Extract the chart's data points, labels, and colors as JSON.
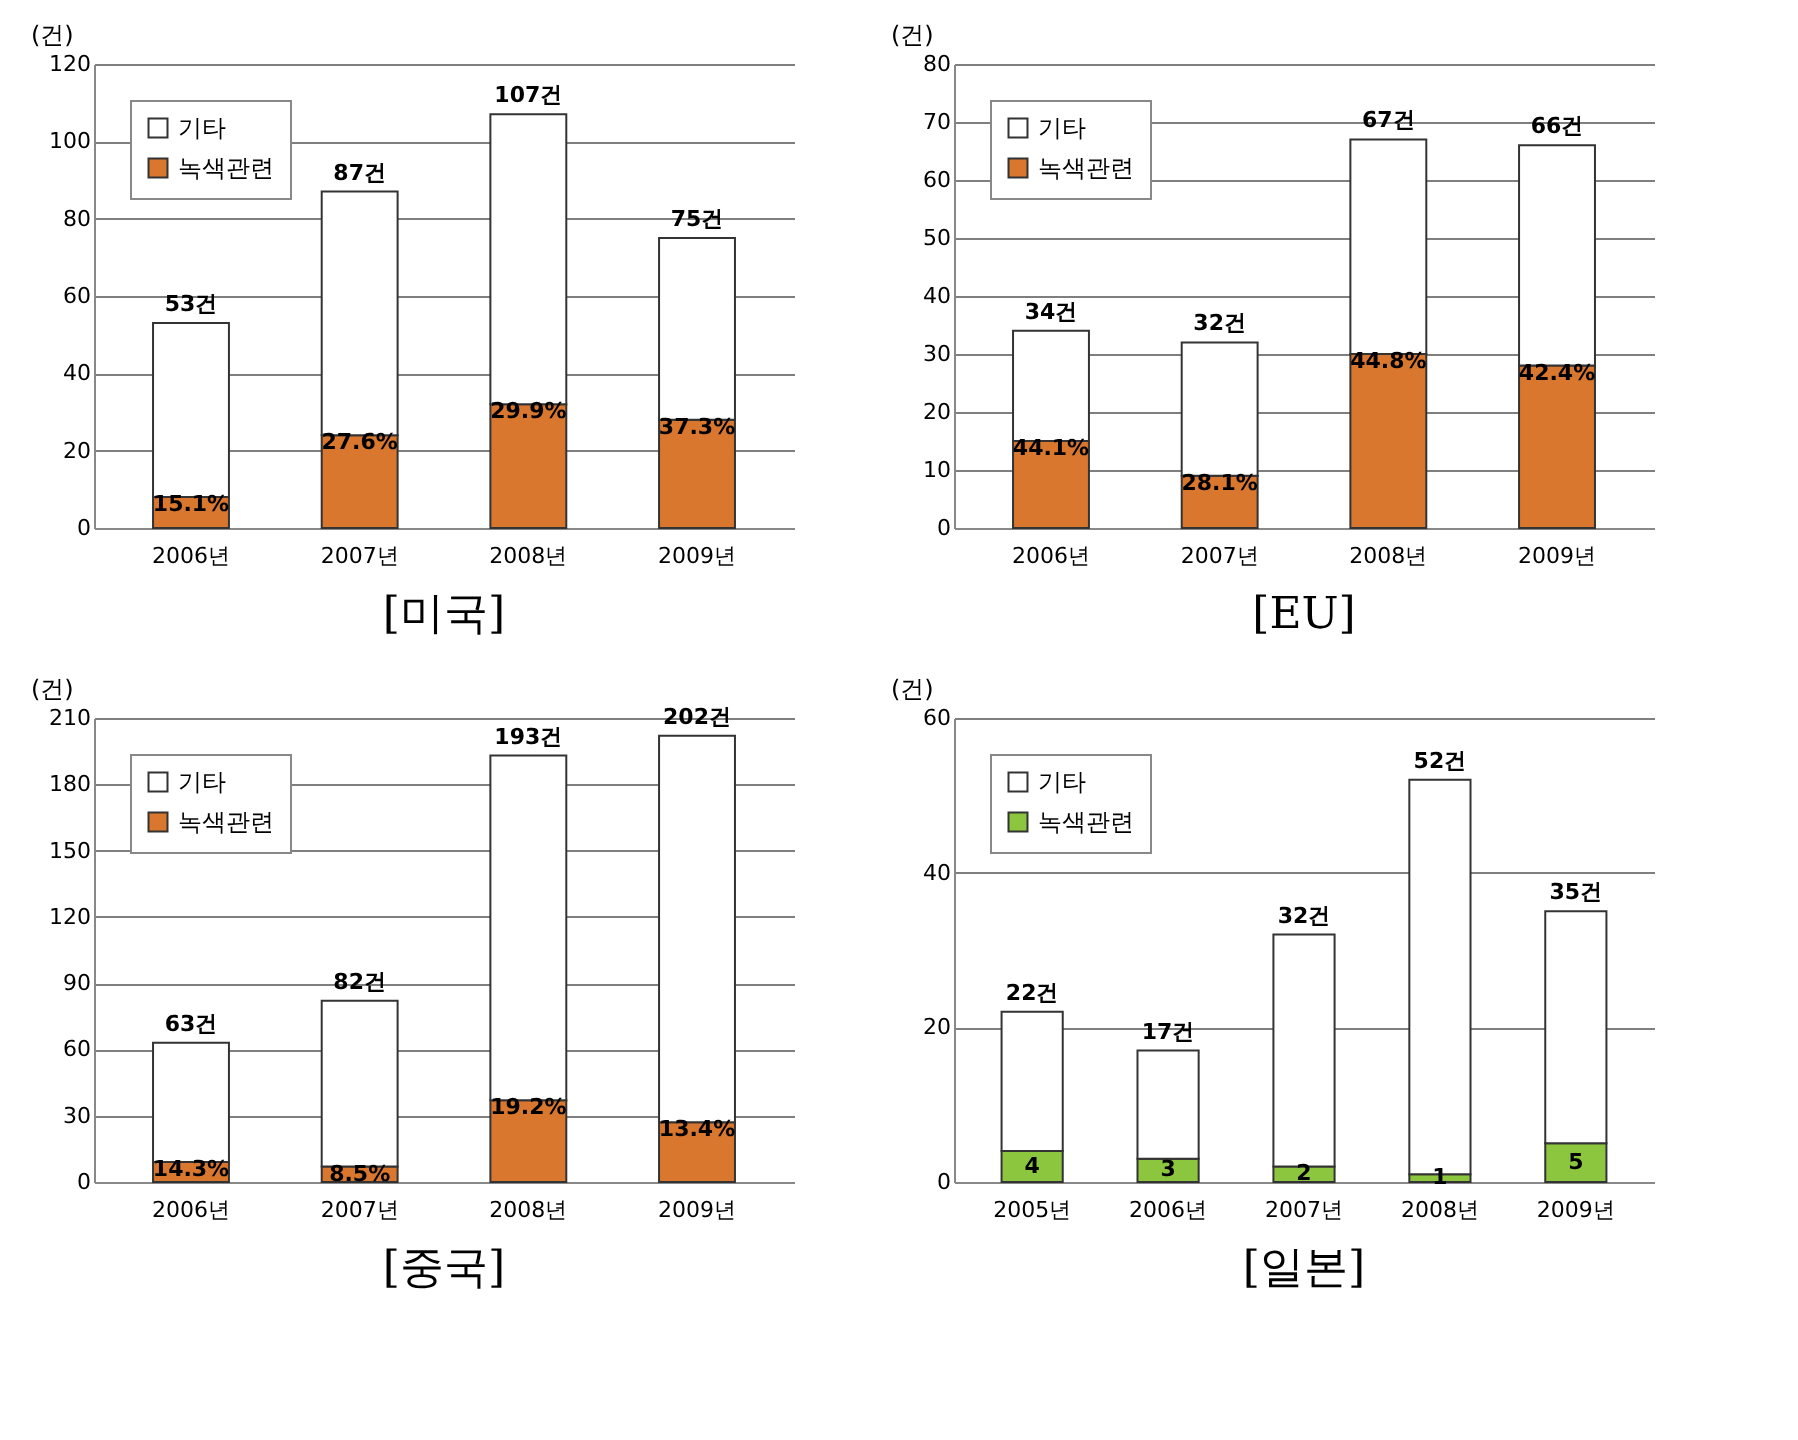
{
  "chart_data": [
    {
      "type": "bar",
      "title": "[미국]",
      "ylabel": "(건)",
      "categories": [
        "2006년",
        "2007년",
        "2008년",
        "2009년"
      ],
      "stacked": true,
      "ylim": [
        0,
        120
      ],
      "yticks": [
        0,
        20,
        40,
        60,
        80,
        100,
        120
      ],
      "grid": "y",
      "legend": "top left",
      "series": [
        {
          "name": "녹색관련",
          "color": "#d9772e",
          "values": [
            8,
            24,
            32,
            28
          ]
        },
        {
          "name": "기타",
          "color": "#ffffff",
          "values": [
            45,
            63,
            75,
            47
          ]
        }
      ],
      "annotations": [
        {
          "text": "15.1%",
          "x": "2006년",
          "y": 8
        },
        {
          "text": "27.6%",
          "x": "2007년",
          "y": 24
        },
        {
          "text": "29.9%",
          "x": "2008년",
          "y": 32
        },
        {
          "text": "37.3%",
          "x": "2009년",
          "y": 28
        }
      ],
      "totals": [
        "53건",
        "87건",
        "107건",
        "75건"
      ]
    },
    {
      "type": "bar",
      "title": "[EU]",
      "ylabel": "(건)",
      "categories": [
        "2006년",
        "2007년",
        "2008년",
        "2009년"
      ],
      "stacked": true,
      "ylim": [
        0,
        80
      ],
      "yticks": [
        0,
        10,
        20,
        30,
        40,
        50,
        60,
        70,
        80
      ],
      "grid": "y",
      "legend": "top left",
      "series": [
        {
          "name": "녹색관련",
          "color": "#d9772e",
          "values": [
            15,
            9,
            30,
            28
          ]
        },
        {
          "name": "기타",
          "color": "#ffffff",
          "values": [
            19,
            23,
            37,
            38
          ]
        }
      ],
      "annotations": [
        {
          "text": "44.1%",
          "x": "2006년",
          "y": 15
        },
        {
          "text": "28.1%",
          "x": "2007년",
          "y": 9
        },
        {
          "text": "44.8%",
          "x": "2008년",
          "y": 30
        },
        {
          "text": "42.4%",
          "x": "2009년",
          "y": 28
        }
      ],
      "totals": [
        "34건",
        "32건",
        "67건",
        "66건"
      ]
    },
    {
      "type": "bar",
      "title": "[중국]",
      "ylabel": "(건)",
      "categories": [
        "2006년",
        "2007년",
        "2008년",
        "2009년"
      ],
      "stacked": true,
      "ylim": [
        0,
        210
      ],
      "yticks": [
        0,
        30,
        60,
        90,
        120,
        150,
        180,
        210
      ],
      "grid": "y",
      "legend": "top left",
      "series": [
        {
          "name": "녹색관련",
          "color": "#d9772e",
          "values": [
            9,
            7,
            37,
            27
          ]
        },
        {
          "name": "기타",
          "color": "#ffffff",
          "values": [
            54,
            75,
            156,
            175
          ]
        }
      ],
      "annotations": [
        {
          "text": "14.3%",
          "x": "2006년",
          "y": 9
        },
        {
          "text": "8.5%",
          "x": "2007년",
          "y": 7
        },
        {
          "text": "19.2%",
          "x": "2008년",
          "y": 37
        },
        {
          "text": "13.4%",
          "x": "2009년",
          "y": 27
        }
      ],
      "totals": [
        "63건",
        "82건",
        "193건",
        "202건"
      ]
    },
    {
      "type": "bar",
      "title": "[일본]",
      "ylabel": "(건)",
      "categories": [
        "2005년",
        "2006년",
        "2007년",
        "2008년",
        "2009년"
      ],
      "stacked": true,
      "ylim": [
        0,
        60
      ],
      "yticks": [
        0,
        20,
        40,
        60
      ],
      "grid": "y",
      "legend": "top left",
      "series": [
        {
          "name": "녹색관련",
          "color": "#8cc63e",
          "values": [
            4,
            3,
            2,
            1,
            5
          ],
          "value_labels": [
            "4",
            "3",
            "2",
            "1",
            "5"
          ]
        },
        {
          "name": "기타",
          "color": "#ffffff",
          "values": [
            18,
            14,
            30,
            51,
            30
          ]
        }
      ],
      "totals": [
        "22건",
        "17건",
        "32건",
        "52건",
        "35건"
      ]
    }
  ]
}
